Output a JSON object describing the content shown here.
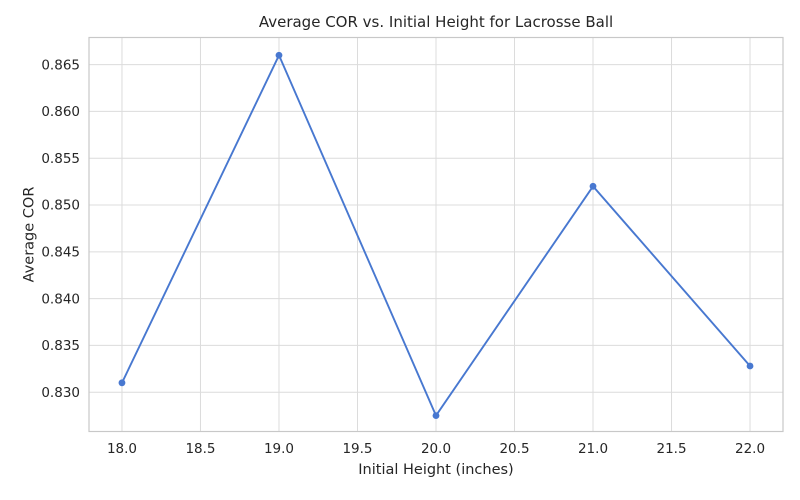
{
  "chart_data": {
    "type": "line",
    "title": "Average COR vs. Initial Height for Lacrosse Ball",
    "xlabel": "Initial Height (inches)",
    "ylabel": "Average COR",
    "x": [
      18,
      19,
      20,
      21,
      22
    ],
    "y": [
      0.831,
      0.866,
      0.8275,
      0.852,
      0.8328
    ],
    "series": [
      {
        "name": "Average COR",
        "x": [
          18,
          19,
          20,
          21,
          22
        ],
        "y": [
          0.831,
          0.866,
          0.8275,
          0.852,
          0.8328
        ]
      }
    ],
    "xticks": {
      "values": [
        18,
        18.5,
        19,
        19.5,
        20,
        20.5,
        21,
        21.5,
        22
      ],
      "labels": [
        "18.0",
        "18.5",
        "19.0",
        "19.5",
        "20.0",
        "20.5",
        "21.0",
        "21.5",
        "22.0"
      ]
    },
    "yticks": {
      "values": [
        0.83,
        0.835,
        0.84,
        0.845,
        0.85,
        0.855,
        0.86,
        0.865
      ],
      "labels": [
        "0.830",
        "0.835",
        "0.840",
        "0.845",
        "0.850",
        "0.855",
        "0.860",
        "0.865"
      ]
    },
    "xlim": [
      17.79,
      22.21
    ],
    "ylim": [
      0.8258,
      0.8679
    ],
    "grid": true,
    "legend": "none",
    "marker": "circle",
    "colors": {
      "line": "#4878d0",
      "marker": "#4878d0",
      "grid": "#dcdcdc",
      "spine": "#c8c8c8",
      "text": "#262626",
      "background": "#ffffff"
    }
  }
}
